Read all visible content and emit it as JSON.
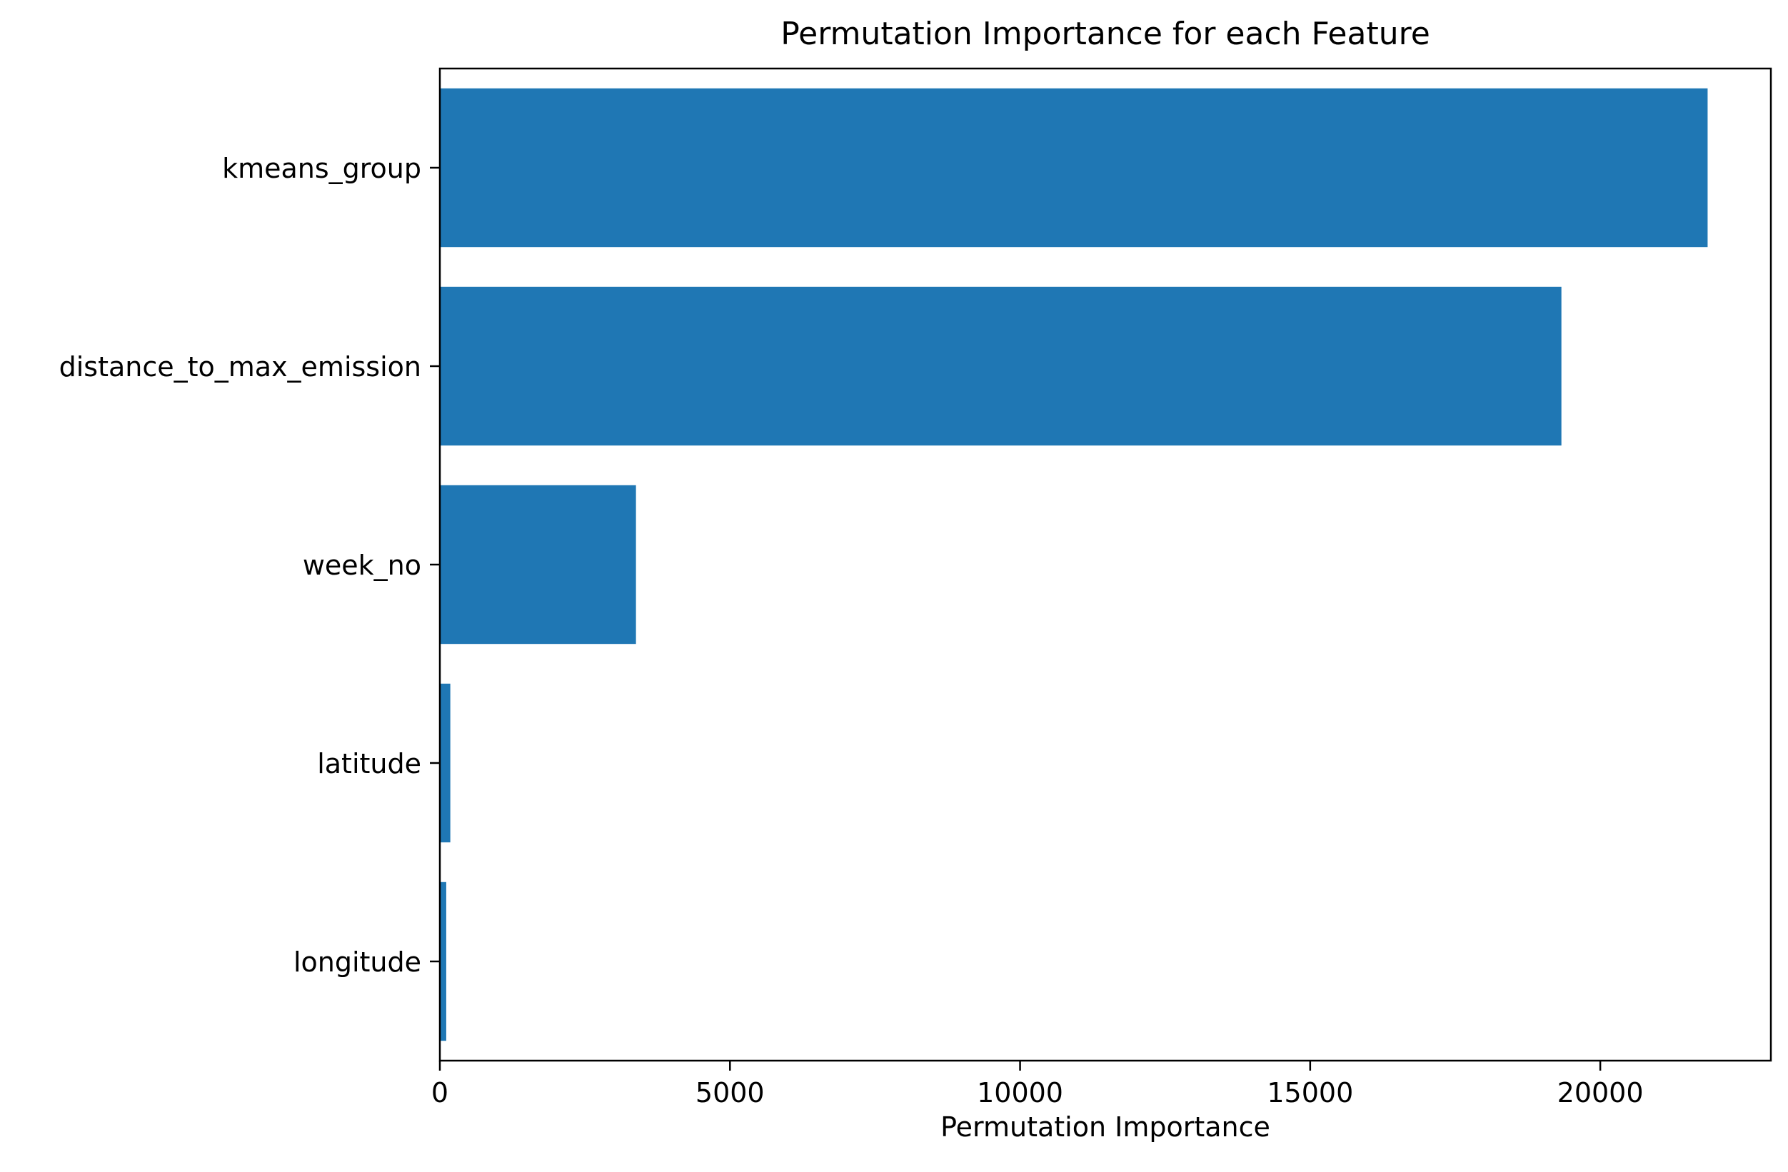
{
  "chart_data": {
    "type": "bar",
    "orientation": "horizontal",
    "title": "Permutation Importance for each Feature",
    "xlabel": "Permutation Importance",
    "ylabel": "",
    "categories": [
      "kmeans_group",
      "distance_to_max_emission",
      "week_no",
      "latitude",
      "longitude"
    ],
    "values": [
      21850,
      19330,
      3380,
      180,
      110
    ],
    "xlim": [
      0,
      22940
    ],
    "xticks": [
      0,
      5000,
      10000,
      15000,
      20000
    ],
    "xtick_labels": [
      "0",
      "5000",
      "10000",
      "15000",
      "20000"
    ],
    "grid": false,
    "legend": "none",
    "bar_color": "#1f77b4"
  }
}
